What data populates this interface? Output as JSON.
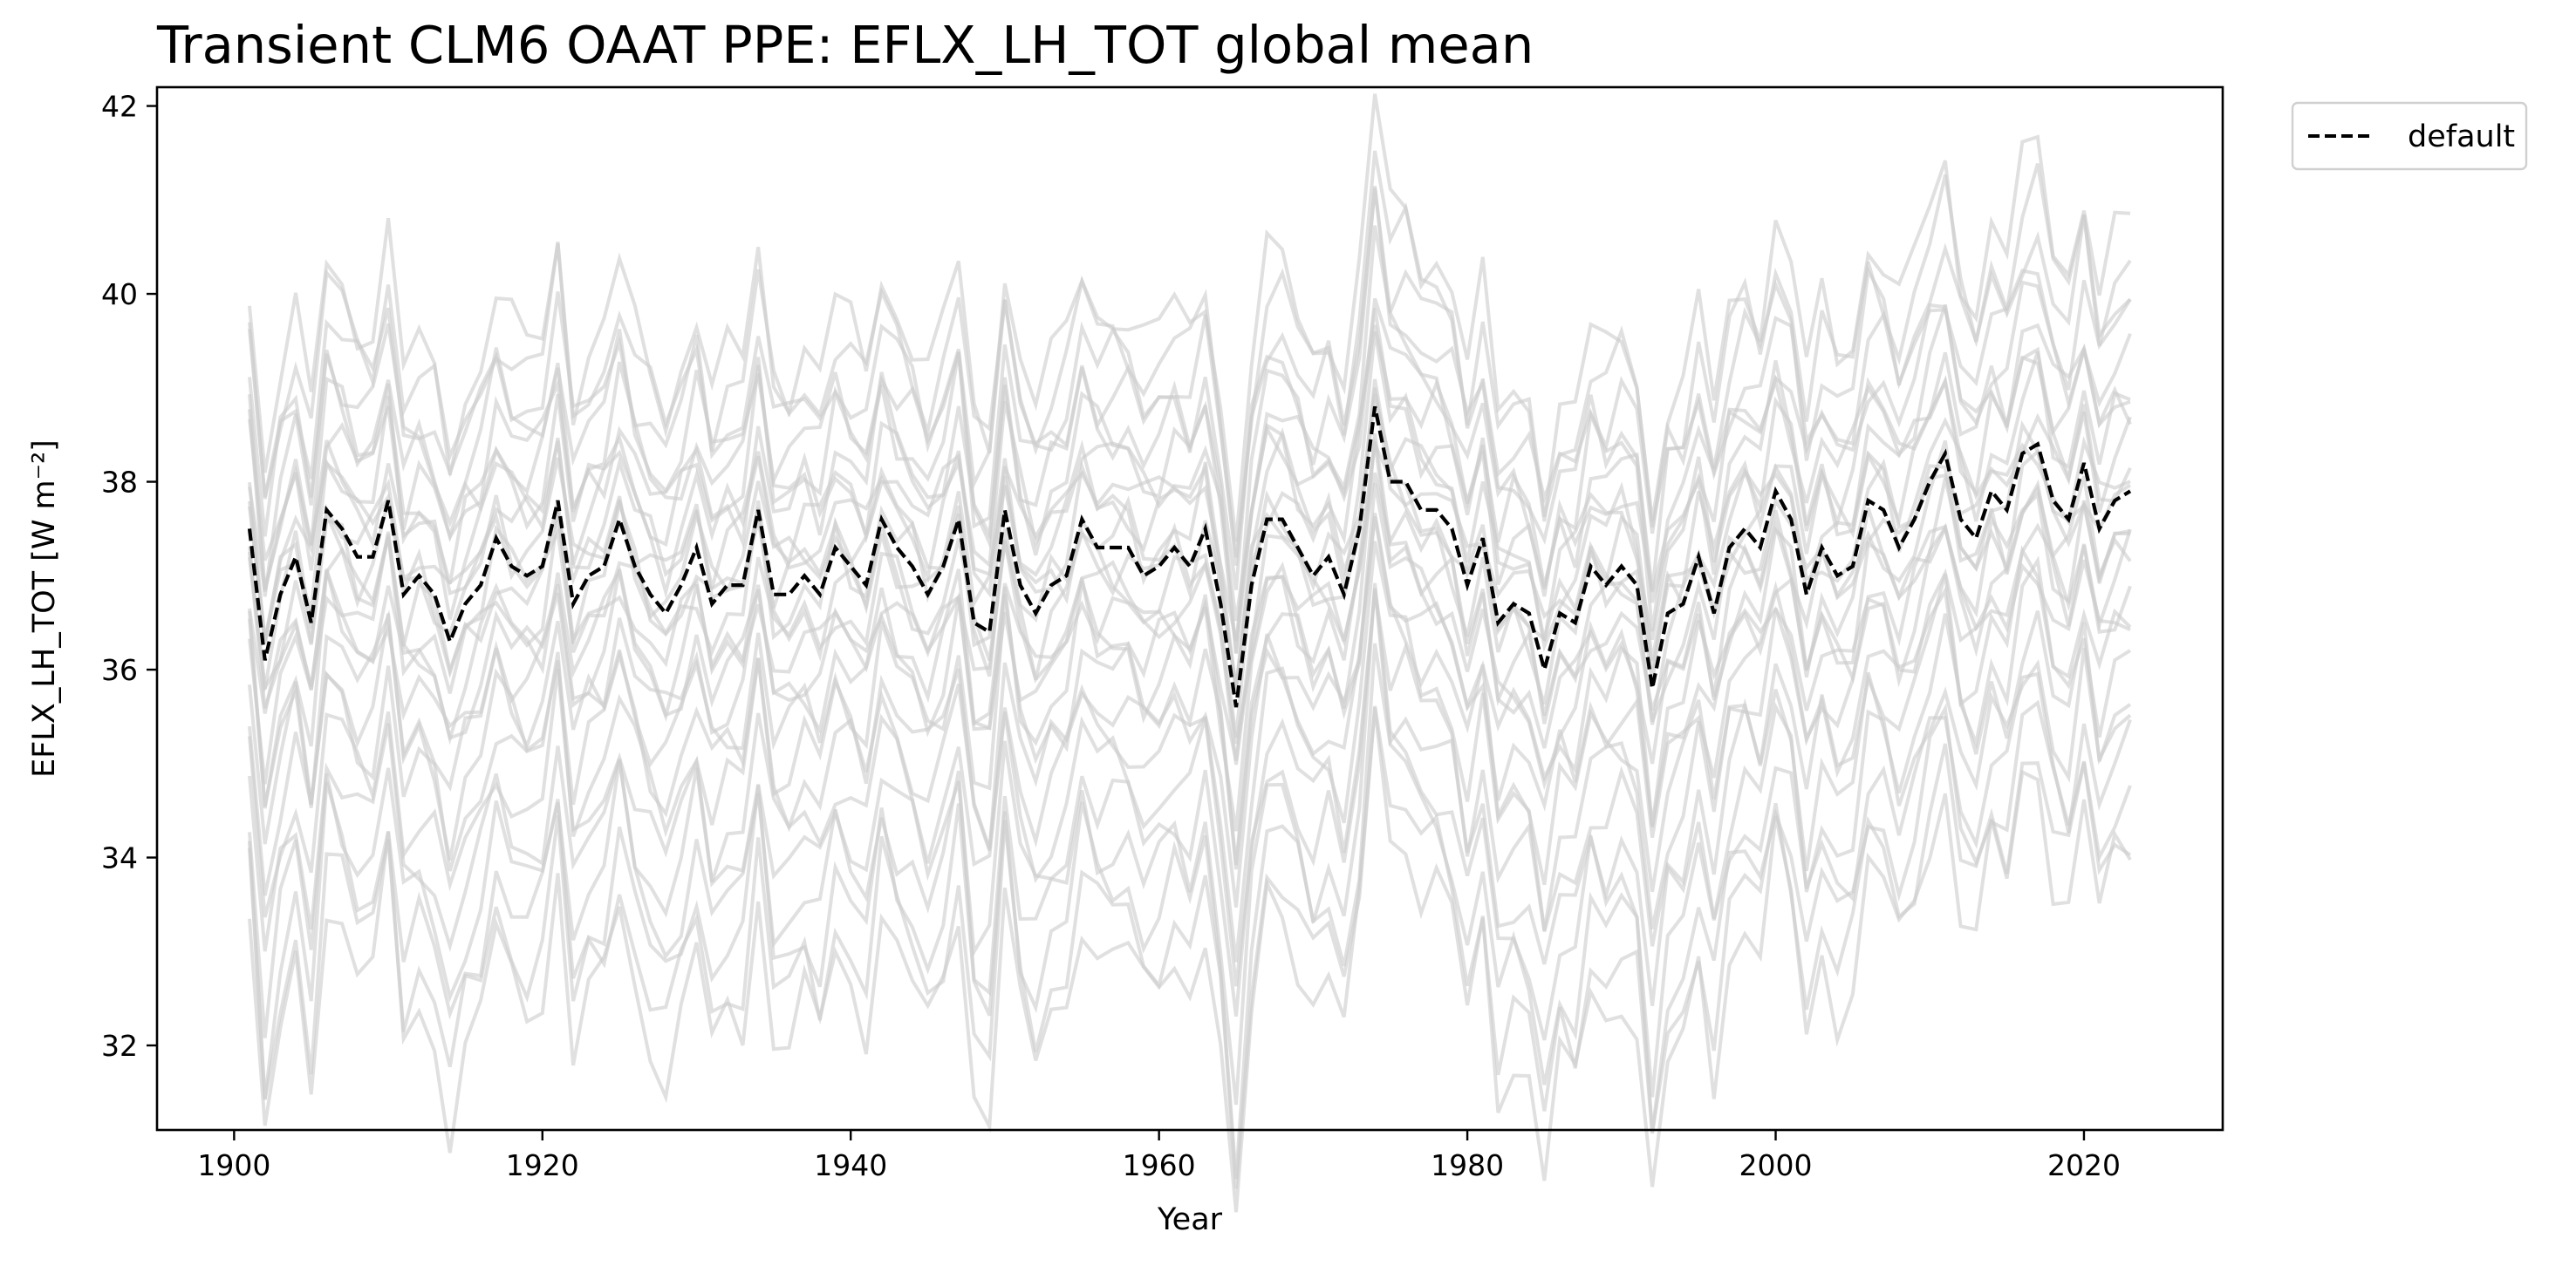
{
  "chart_data": {
    "type": "line",
    "title": "Transient CLM6 OAAT PPE: EFLX_LH_TOT global mean",
    "xlabel": "Year",
    "ylabel": "EFLX_LH_TOT [W m⁻²]",
    "xlim": [
      1895,
      2029
    ],
    "ylim": [
      31.1,
      42.2
    ],
    "x_ticks": [
      1900,
      1920,
      1940,
      1960,
      1980,
      2000,
      2020
    ],
    "y_ticks": [
      32,
      34,
      36,
      38,
      40,
      42
    ],
    "x_tick_labels": [
      "1900",
      "1920",
      "1940",
      "1960",
      "1980",
      "2000",
      "2020"
    ],
    "y_tick_labels": [
      "32",
      "34",
      "36",
      "38",
      "40",
      "42"
    ],
    "grid": false,
    "legend_position": "outside-top-right",
    "colors": {
      "default": "#000000",
      "ensemble": "#cccccc"
    },
    "legend": [
      {
        "label": "default",
        "style": "dashed",
        "color": "#000000"
      }
    ],
    "ensemble_description_offsets": [
      -4.4,
      -4.0,
      -3.6,
      -3.2,
      -2.8,
      -2.4,
      -2.0,
      -1.7,
      -1.4,
      -1.1,
      -0.9,
      -0.7,
      -0.5,
      -0.3,
      -0.1,
      0.1,
      0.3,
      0.5,
      0.7,
      0.9,
      1.1,
      1.3,
      1.6,
      1.9,
      2.2,
      2.5
    ],
    "series": [
      {
        "name": "default",
        "style": "dashed",
        "color": "#000000",
        "x_start": 1901,
        "x_step": 1,
        "values": [
          37.5,
          36.1,
          36.8,
          37.2,
          36.5,
          37.7,
          37.5,
          37.2,
          37.2,
          37.8,
          36.8,
          37.0,
          36.8,
          36.3,
          36.7,
          36.9,
          37.4,
          37.1,
          37.0,
          37.1,
          37.8,
          36.7,
          37.0,
          37.1,
          37.6,
          37.1,
          36.8,
          36.6,
          36.9,
          37.3,
          36.7,
          36.9,
          36.9,
          37.7,
          36.8,
          36.8,
          37.0,
          36.8,
          37.3,
          37.1,
          36.9,
          37.6,
          37.3,
          37.1,
          36.8,
          37.1,
          37.6,
          36.5,
          36.4,
          37.7,
          36.9,
          36.6,
          36.9,
          37.0,
          37.6,
          37.3,
          37.3,
          37.3,
          37.0,
          37.1,
          37.3,
          37.1,
          37.5,
          36.7,
          35.6,
          36.9,
          37.6,
          37.6,
          37.3,
          37.0,
          37.2,
          36.8,
          37.5,
          38.8,
          38.0,
          38.0,
          37.7,
          37.7,
          37.5,
          36.9,
          37.4,
          36.5,
          36.7,
          36.6,
          36.0,
          36.6,
          36.5,
          37.1,
          36.9,
          37.1,
          36.9,
          35.8,
          36.6,
          36.7,
          37.2,
          36.6,
          37.3,
          37.5,
          37.3,
          37.9,
          37.6,
          36.8,
          37.3,
          37.0,
          37.1,
          37.8,
          37.7,
          37.3,
          37.6,
          38.0,
          38.3,
          37.6,
          37.4,
          37.9,
          37.7,
          38.3,
          38.4,
          37.8,
          37.6,
          38.2,
          37.5,
          37.8,
          37.9
        ]
      }
    ]
  }
}
